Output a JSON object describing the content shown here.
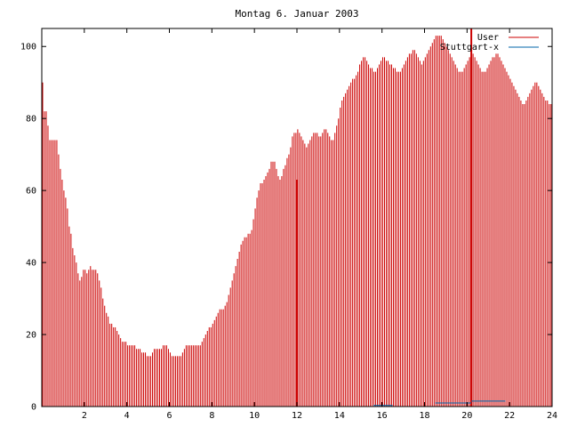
{
  "chart_data": {
    "type": "bar",
    "title": "Montag 6. Januar 2003",
    "xlabel": "",
    "ylabel": "",
    "xlim": [
      0,
      24
    ],
    "ylim": [
      0,
      105
    ],
    "grid": false,
    "legend_position": "top-right",
    "x_ticks": [
      "2",
      "4",
      "6",
      "8",
      "10",
      "12",
      "14",
      "16",
      "18",
      "20",
      "22",
      "24"
    ],
    "y_ticks": [
      "0",
      "20",
      "40",
      "60",
      "80",
      "100"
    ],
    "series": [
      {
        "name": "User",
        "color": "#cc0000",
        "bin_width_hours": 0.0833,
        "values": [
          90,
          82,
          82,
          78,
          74,
          74,
          74,
          74,
          74,
          70,
          66,
          63,
          60,
          58,
          55,
          50,
          48,
          44,
          42,
          40,
          37,
          35,
          36,
          38,
          38,
          37,
          38,
          39,
          38,
          38,
          38,
          37,
          35,
          33,
          30,
          28,
          26,
          25,
          23,
          23,
          22,
          22,
          21,
          20,
          19,
          18,
          18,
          18,
          17,
          17,
          17,
          17,
          17,
          16,
          16,
          16,
          15,
          15,
          15,
          14,
          14,
          14,
          15,
          16,
          16,
          16,
          16,
          16,
          17,
          17,
          17,
          16,
          15,
          14,
          14,
          14,
          14,
          14,
          14,
          15,
          16,
          17,
          17,
          17,
          17,
          17,
          17,
          17,
          17,
          17,
          18,
          19,
          20,
          21,
          22,
          22,
          23,
          24,
          25,
          26,
          27,
          27,
          27,
          28,
          29,
          31,
          33,
          35,
          37,
          39,
          41,
          43,
          45,
          46,
          47,
          47,
          48,
          48,
          49,
          52,
          55,
          58,
          60,
          62,
          62,
          63,
          64,
          65,
          66,
          68,
          68,
          68,
          66,
          64,
          63,
          64,
          66,
          67,
          69,
          70,
          72,
          75,
          76,
          76,
          77,
          76,
          75,
          74,
          73,
          72,
          73,
          74,
          75,
          76,
          76,
          76,
          75,
          75,
          76,
          77,
          77,
          76,
          75,
          74,
          74,
          76,
          78,
          80,
          83,
          85,
          86,
          87,
          88,
          89,
          90,
          91,
          91,
          92,
          93,
          95,
          96,
          97,
          97,
          96,
          95,
          94,
          94,
          93,
          93,
          94,
          95,
          96,
          97,
          97,
          96,
          96,
          95,
          95,
          94,
          94,
          93,
          93,
          93,
          94,
          95,
          96,
          97,
          98,
          98,
          99,
          99,
          98,
          97,
          96,
          95,
          96,
          97,
          98,
          99,
          100,
          101,
          102,
          103,
          103,
          103,
          103,
          102,
          101,
          100,
          99,
          98,
          97,
          96,
          95,
          94,
          93,
          93,
          93,
          94,
          95,
          96,
          97,
          98,
          98,
          97,
          96,
          95,
          94,
          93,
          93,
          93,
          94,
          95,
          96,
          97,
          97,
          98,
          98,
          97,
          96,
          95,
          94,
          93,
          92,
          91,
          90,
          89,
          88,
          87,
          86,
          85,
          84,
          84,
          85,
          86,
          87,
          88,
          89,
          90,
          90,
          89,
          88,
          87,
          86,
          85,
          85,
          84,
          84
        ]
      },
      {
        "name": "Stuttgart-x",
        "color": "#0066aa",
        "segments": [
          {
            "x_start": 15.6,
            "x_end": 16.5,
            "value": 0.3
          },
          {
            "x_start": 18.5,
            "x_end": 20.2,
            "value": 1.0
          },
          {
            "x_start": 20.2,
            "x_end": 21.8,
            "value": 1.5
          }
        ]
      }
    ],
    "annotations": [
      {
        "x": 12.0,
        "value": 63,
        "color": "#cc0000"
      },
      {
        "x": 20.2,
        "value": 105,
        "color": "#cc0000"
      }
    ]
  }
}
